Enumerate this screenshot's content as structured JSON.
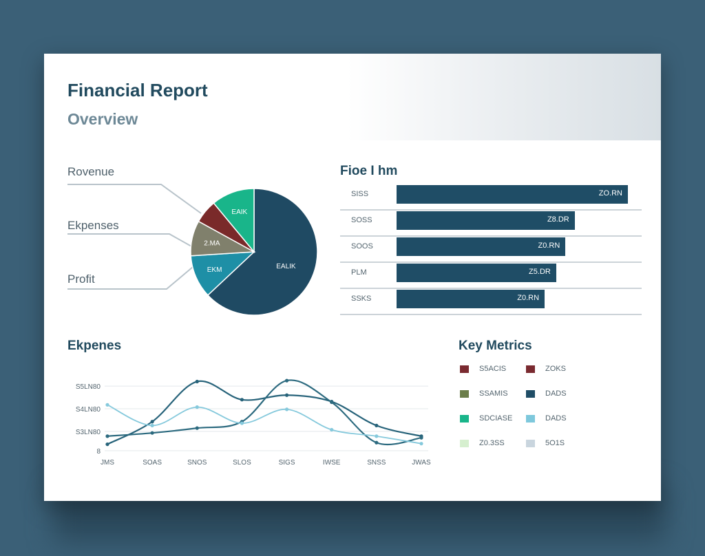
{
  "report": {
    "title": "Financial Report",
    "subtitle": "Overview"
  },
  "chart_data": [
    {
      "type": "pie",
      "legend": [
        "Rovenue",
        "Ekpenses",
        "Profit"
      ],
      "slices": [
        {
          "label": "EALIK",
          "value": 63,
          "color": "#1f4a63"
        },
        {
          "label": "EKM",
          "value": 11,
          "color": "#1e8fa6"
        },
        {
          "label": "2.MA",
          "value": 9,
          "color": "#80806c"
        },
        {
          "label": "",
          "value": 6,
          "color": "#7a2a2a"
        },
        {
          "label": "EAIK",
          "value": 11,
          "color": "#19b58a"
        }
      ]
    },
    {
      "type": "bar",
      "title": "Fioe I hm",
      "categories": [
        "SISS",
        "SOSS",
        "SOOS",
        "PLM",
        "SSKS"
      ],
      "values": [
        100,
        77,
        73,
        69,
        64
      ],
      "value_labels": [
        "ZO.RN",
        "Z8.DR",
        "Z0.RN",
        "Z5.DR",
        "Z0.RN"
      ],
      "color": "#1f4d66"
    },
    {
      "type": "line",
      "title": "Ekpenes",
      "x": [
        "JMS",
        "SOAS",
        "SNOS",
        "SLOS",
        "SIGS",
        "IWSE",
        "SNSS",
        "JWAS"
      ],
      "y_tick_labels": [
        "S5LN80",
        "S4LN80",
        "S3LN80",
        "8"
      ],
      "series": [
        {
          "color": "#27637a",
          "values": [
            0.2,
            0.9,
            2.14,
            1.58,
            1.72,
            1.52,
            0.78,
            0.45
          ]
        },
        {
          "color": "#2c6a7f",
          "values": [
            0.45,
            0.55,
            0.7,
            0.9,
            2.17,
            1.5,
            0.25,
            0.4
          ]
        },
        {
          "color": "#85c9dc",
          "values": [
            1.42,
            0.78,
            1.35,
            0.85,
            1.28,
            0.65,
            0.45,
            0.22
          ]
        }
      ]
    }
  ],
  "key_metrics": {
    "title": "Key Metrics",
    "items": [
      {
        "label": "S5ACIS",
        "color": "#7a2a30"
      },
      {
        "label": "ZOKS",
        "color": "#7a2a30"
      },
      {
        "label": "SSAMIS",
        "color": "#6b7d4a"
      },
      {
        "label": "DADS",
        "color": "#1f4d66"
      },
      {
        "label": "SDCIASE",
        "color": "#19b58a"
      },
      {
        "label": "DADS",
        "color": "#7ec8dc"
      },
      {
        "label": "Z0.3SS",
        "color": "#d6efcf"
      },
      {
        "label": "5O1S",
        "color": "#c9d5de"
      }
    ]
  }
}
